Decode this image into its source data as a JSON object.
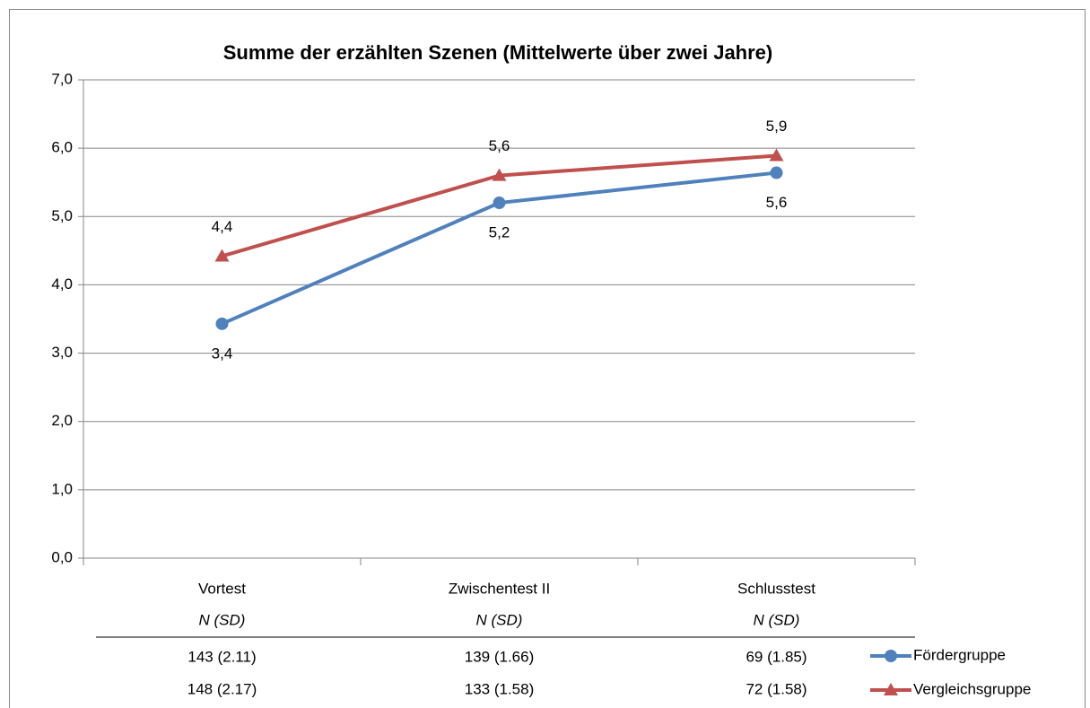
{
  "chart_data": {
    "type": "line",
    "title": "Summe der erzählten Szenen (Mittelwerte über zwei Jahre)",
    "categories": [
      "Vortest",
      "Zwischentest II",
      "Schlusstest"
    ],
    "ylim": [
      0,
      7
    ],
    "yticks": [
      {
        "value": 0,
        "label": "0,0"
      },
      {
        "value": 1,
        "label": "1,0"
      },
      {
        "value": 2,
        "label": "2,0"
      },
      {
        "value": 3,
        "label": "3,0"
      },
      {
        "value": 4,
        "label": "4,0"
      },
      {
        "value": 5,
        "label": "5,0"
      },
      {
        "value": 6,
        "label": "6,0"
      },
      {
        "value": 7,
        "label": "7,0"
      }
    ],
    "grid": true,
    "table_header": [
      "N  (SD)",
      "N  (SD)",
      "N  (SD)"
    ],
    "series": [
      {
        "name": "Fördergruppe",
        "color": "#4f81bd",
        "marker": "circle",
        "label_position": "below",
        "values": [
          3.43,
          5.2,
          5.64
        ],
        "value_labels": [
          "3,4",
          "5,2",
          "5,6"
        ],
        "table": [
          "143 (2.11)",
          "139 (1.66)",
          "69 (1.85)"
        ]
      },
      {
        "name": "Vergleichsgruppe",
        "color": "#c0504d",
        "marker": "triangle",
        "label_position": "above",
        "values": [
          4.42,
          5.6,
          5.89
        ],
        "value_labels": [
          "4,4",
          "5,6",
          "5,9"
        ],
        "table": [
          "148 (2.17)",
          "133 (1.58)",
          "72 (1.58)"
        ]
      }
    ]
  }
}
